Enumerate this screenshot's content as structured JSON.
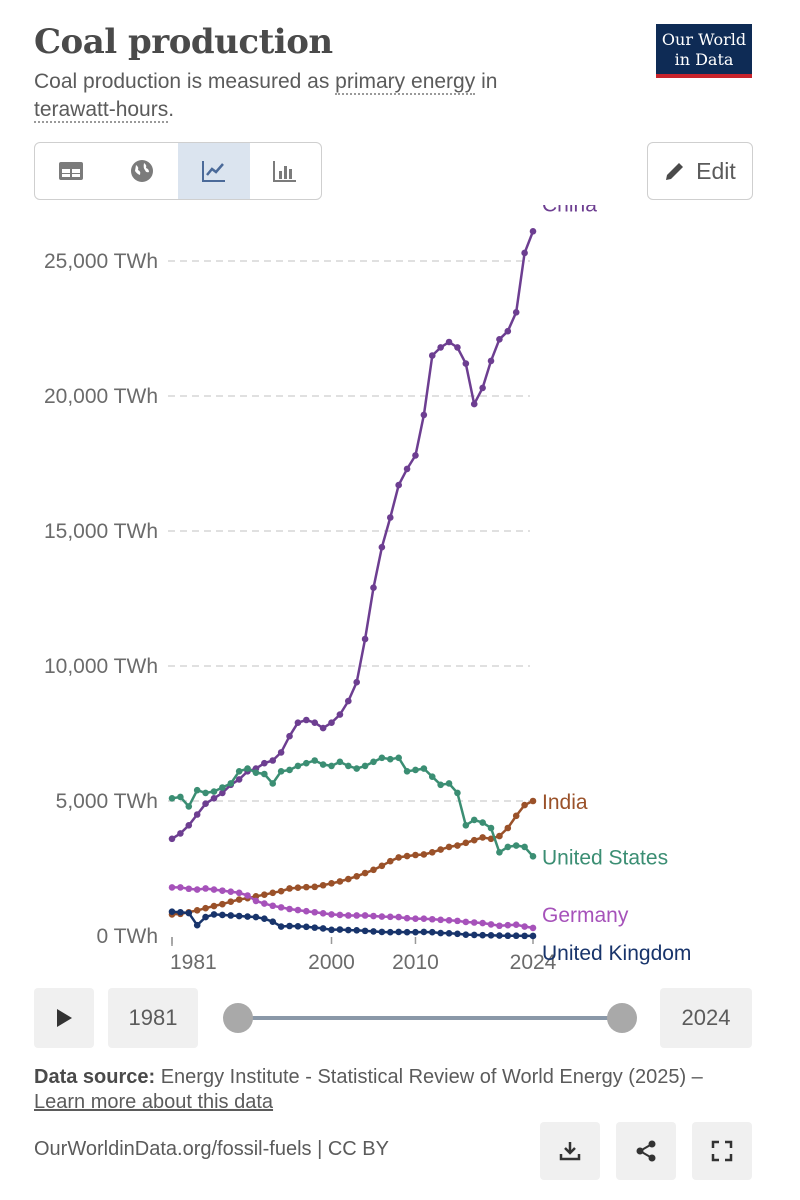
{
  "header": {
    "title": "Coal production",
    "subtitle_pre": "Coal production is measured as ",
    "subtitle_link1": "primary energy",
    "subtitle_mid": " in",
    "subtitle_link2": "terawatt-hours",
    "subtitle_post": ".",
    "logo_line1": "Our World",
    "logo_line2": "in Data"
  },
  "toolbar": {
    "tabs": [
      {
        "icon": "table-icon"
      },
      {
        "icon": "globe-icon"
      },
      {
        "icon": "line-chart-icon",
        "active": true
      },
      {
        "icon": "bar-chart-icon"
      }
    ],
    "edit_label": "Edit"
  },
  "chart_data": {
    "type": "line",
    "ylim": [
      0,
      26000
    ],
    "y_ticks": [
      {
        "value": 0,
        "label": "0 TWh"
      },
      {
        "value": 5000,
        "label": "5,000 TWh"
      },
      {
        "value": 10000,
        "label": "10,000 TWh"
      },
      {
        "value": 15000,
        "label": "15,000 TWh"
      },
      {
        "value": 20000,
        "label": "20,000 TWh"
      },
      {
        "value": 25000,
        "label": "25,000 TWh"
      }
    ],
    "x_ticks": [
      1981,
      2000,
      2010,
      2024
    ],
    "xlim": [
      1981,
      2024
    ],
    "grid": "horizontal dashed",
    "series": [
      {
        "name": "China",
        "color": "#6d3e91",
        "x": [
          1981,
          1982,
          1983,
          1984,
          1985,
          1986,
          1987,
          1988,
          1989,
          1990,
          1991,
          1992,
          1993,
          1994,
          1995,
          1996,
          1997,
          1998,
          1999,
          2000,
          2001,
          2002,
          2003,
          2004,
          2005,
          2006,
          2007,
          2008,
          2009,
          2010,
          2011,
          2012,
          2013,
          2014,
          2015,
          2016,
          2017,
          2018,
          2019,
          2020,
          2021,
          2022,
          2023,
          2024
        ],
        "values": [
          3600,
          3800,
          4100,
          4500,
          4900,
          5100,
          5300,
          5600,
          5800,
          6100,
          6200,
          6400,
          6500,
          6800,
          7400,
          7900,
          8000,
          7900,
          7700,
          7900,
          8200,
          8700,
          9400,
          11000,
          12900,
          14400,
          15500,
          16700,
          17300,
          17800,
          19300,
          21500,
          21800,
          22000,
          21800,
          21200,
          19700,
          20300,
          21300,
          22100,
          22400,
          23100,
          25300,
          26100
        ]
      },
      {
        "name": "India",
        "color": "#9a5129",
        "x": [
          1981,
          1982,
          1983,
          1984,
          1985,
          1986,
          1987,
          1988,
          1989,
          1990,
          1991,
          1992,
          1993,
          1994,
          1995,
          1996,
          1997,
          1998,
          1999,
          2000,
          2001,
          2002,
          2003,
          2004,
          2005,
          2006,
          2007,
          2008,
          2009,
          2010,
          2011,
          2012,
          2013,
          2014,
          2015,
          2016,
          2017,
          2018,
          2019,
          2020,
          2021,
          2022,
          2023,
          2024
        ],
        "values": [
          800,
          820,
          880,
          950,
          1030,
          1110,
          1180,
          1270,
          1350,
          1400,
          1470,
          1530,
          1600,
          1660,
          1760,
          1790,
          1810,
          1820,
          1880,
          1950,
          2020,
          2110,
          2210,
          2330,
          2450,
          2600,
          2770,
          2910,
          2960,
          3000,
          3020,
          3100,
          3200,
          3300,
          3350,
          3450,
          3550,
          3650,
          3600,
          3700,
          4000,
          4450,
          4850,
          5000
        ]
      },
      {
        "name": "United States",
        "color": "#3b8e73",
        "x": [
          1981,
          1982,
          1983,
          1984,
          1985,
          1986,
          1987,
          1988,
          1989,
          1990,
          1991,
          1992,
          1993,
          1994,
          1995,
          1996,
          1997,
          1998,
          1999,
          2000,
          2001,
          2002,
          2003,
          2004,
          2005,
          2006,
          2007,
          2008,
          2009,
          2010,
          2011,
          2012,
          2013,
          2014,
          2015,
          2016,
          2017,
          2018,
          2019,
          2020,
          2021,
          2022,
          2023,
          2024
        ],
        "values": [
          5100,
          5150,
          4800,
          5400,
          5300,
          5350,
          5500,
          5650,
          6100,
          6200,
          6050,
          6000,
          5650,
          6100,
          6150,
          6300,
          6400,
          6500,
          6350,
          6300,
          6450,
          6300,
          6200,
          6300,
          6450,
          6600,
          6550,
          6600,
          6100,
          6150,
          6200,
          5900,
          5600,
          5650,
          5300,
          4100,
          4300,
          4200,
          4000,
          3100,
          3300,
          3350,
          3300,
          2950
        ]
      },
      {
        "name": "Germany",
        "color": "#a652ba",
        "x": [
          1981,
          1982,
          1983,
          1984,
          1985,
          1986,
          1987,
          1988,
          1989,
          1990,
          1991,
          1992,
          1993,
          1994,
          1995,
          1996,
          1997,
          1998,
          1999,
          2000,
          2001,
          2002,
          2003,
          2004,
          2005,
          2006,
          2007,
          2008,
          2009,
          2010,
          2011,
          2012,
          2013,
          2014,
          2015,
          2016,
          2017,
          2018,
          2019,
          2020,
          2021,
          2022,
          2023,
          2024
        ],
        "values": [
          1800,
          1800,
          1750,
          1720,
          1760,
          1720,
          1680,
          1640,
          1600,
          1500,
          1300,
          1200,
          1120,
          1060,
          1000,
          960,
          920,
          880,
          840,
          800,
          780,
          760,
          760,
          760,
          740,
          720,
          710,
          700,
          660,
          640,
          640,
          620,
          600,
          580,
          560,
          520,
          500,
          480,
          430,
          380,
          400,
          420,
          350,
          300
        ]
      },
      {
        "name": "United Kingdom",
        "color": "#18346b",
        "x": [
          1981,
          1982,
          1983,
          1984,
          1985,
          1986,
          1987,
          1988,
          1989,
          1990,
          1991,
          1992,
          1993,
          1994,
          1995,
          1996,
          1997,
          1998,
          1999,
          2000,
          2001,
          2002,
          2003,
          2004,
          2005,
          2006,
          2007,
          2008,
          2009,
          2010,
          2011,
          2012,
          2013,
          2014,
          2015,
          2016,
          2017,
          2018,
          2019,
          2020,
          2021,
          2022,
          2023,
          2024
        ],
        "values": [
          900,
          880,
          850,
          400,
          700,
          800,
          780,
          760,
          740,
          720,
          700,
          640,
          530,
          350,
          370,
          360,
          340,
          310,
          280,
          230,
          240,
          220,
          210,
          190,
          170,
          150,
          140,
          150,
          140,
          140,
          150,
          140,
          110,
          100,
          80,
          50,
          40,
          30,
          25,
          15,
          10,
          10,
          5,
          2
        ]
      }
    ]
  },
  "timeline": {
    "start_year": "1981",
    "end_year": "2024"
  },
  "source": {
    "label": "Data source:",
    "text": " Energy Institute - Statistical Review of World Energy (2025) – ",
    "link": "Learn more about this data"
  },
  "footer": {
    "text": "OurWorldinData.org/fossil-fuels | CC BY"
  }
}
